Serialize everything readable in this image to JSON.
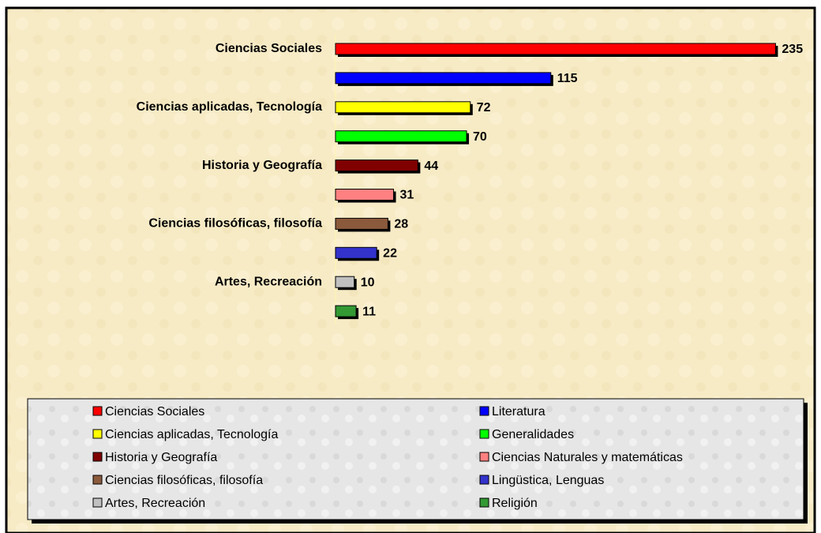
{
  "chart_data": {
    "type": "bar",
    "orientation": "horizontal",
    "categories": [
      "Ciencias Sociales",
      null,
      "Ciencias aplicadas, Tecnología",
      null,
      "Historia y Geografía",
      null,
      "Ciencias filosóficas, filosofía",
      null,
      "Artes, Recreación",
      null
    ],
    "values": [
      235,
      115,
      72,
      70,
      44,
      31,
      28,
      22,
      10,
      11
    ],
    "colors": [
      "#ff0000",
      "#0000ff",
      "#ffff00",
      "#00ff00",
      "#800000",
      "#ff8080",
      "#8b5a3c",
      "#3333cc",
      "#c0c0c0",
      "#339933"
    ],
    "legend": [
      "Ciencias Sociales",
      "Literatura",
      "Ciencias aplicadas, Tecnología",
      "Generalidades",
      "Historia y Geografía",
      "Ciencias Naturales y matemáticas",
      "Ciencias filosóficas, filosofía",
      "Lingüstica, Lenguas",
      "Artes, Recreación",
      "Religión"
    ],
    "xlim": [
      0,
      250
    ]
  }
}
